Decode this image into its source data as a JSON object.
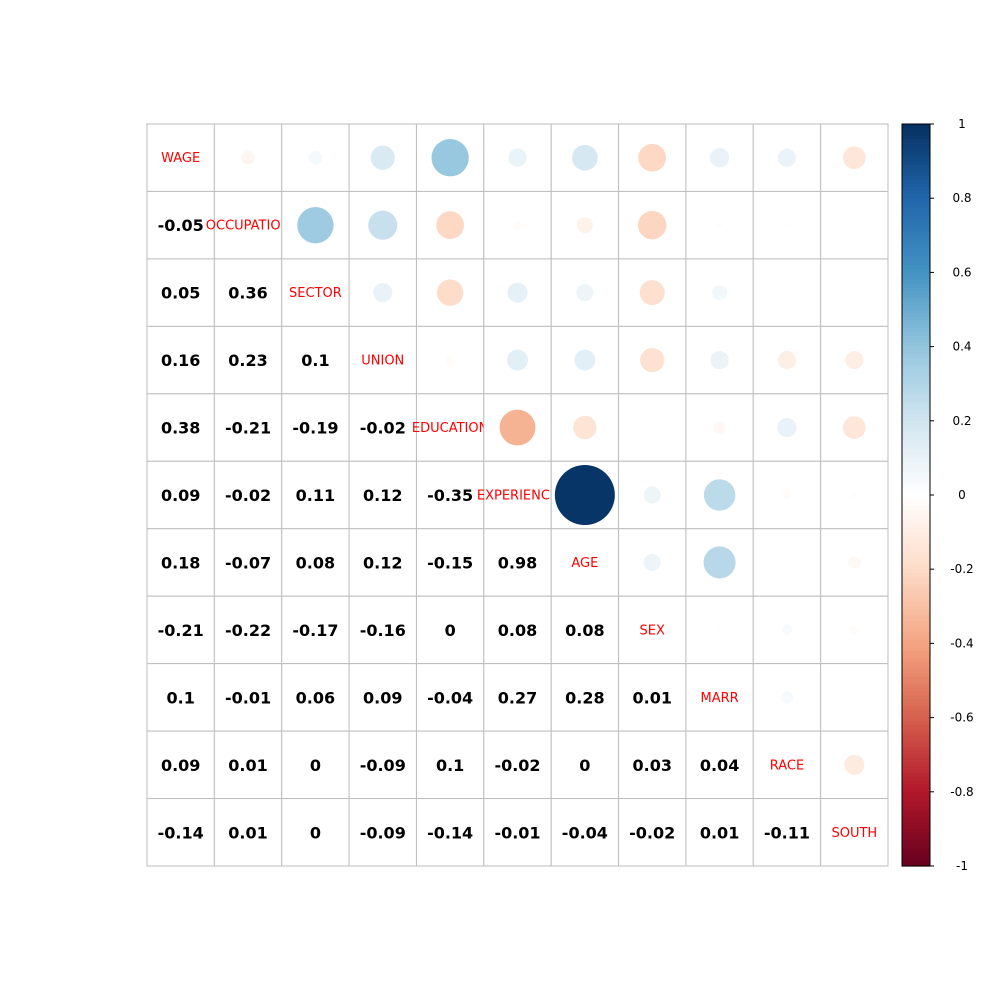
{
  "chart_data": {
    "type": "heatmap",
    "style": "corrplot mixed: upper triangle circles, lower triangle numbers, diagonal variable labels",
    "variables": [
      "WAGE",
      "OCCUPATION",
      "SECTOR",
      "UNION",
      "EDUCATION",
      "EXPERIENCE",
      "AGE",
      "SEX",
      "MARR",
      "RACE",
      "SOUTH"
    ],
    "lower_triangle": [
      [],
      [
        -0.05
      ],
      [
        0.05,
        0.36
      ],
      [
        0.16,
        0.23,
        0.1
      ],
      [
        0.38,
        -0.21,
        -0.19,
        -0.02
      ],
      [
        0.09,
        -0.02,
        0.11,
        0.12,
        -0.35
      ],
      [
        0.18,
        -0.07,
        0.08,
        0.12,
        -0.15,
        0.98
      ],
      [
        -0.21,
        -0.22,
        -0.17,
        -0.16,
        0,
        0.08,
        0.08
      ],
      [
        0.1,
        -0.01,
        0.06,
        0.09,
        -0.04,
        0.27,
        0.28,
        0.01
      ],
      [
        0.09,
        0.01,
        0,
        -0.09,
        0.1,
        -0.02,
        0,
        0.03,
        0.04
      ],
      [
        -0.14,
        0.01,
        0,
        -0.09,
        -0.14,
        -0.01,
        -0.04,
        -0.02,
        0.01,
        -0.11
      ]
    ],
    "colorbar": {
      "range": [
        -1,
        1
      ],
      "ticks": [
        "1",
        "0.8",
        "0.6",
        "0.4",
        "0.2",
        "0",
        "-0.2",
        "-0.4",
        "-0.6",
        "-0.8",
        "-1"
      ]
    },
    "colors": {
      "palette": [
        "#67001F",
        "#B2182B",
        "#D6604D",
        "#F4A582",
        "#FDDBC7",
        "#FFFFFF",
        "#D1E5F0",
        "#92C5DE",
        "#4393C3",
        "#2166AC",
        "#053061"
      ],
      "label": "#FF0000",
      "grid": "#BEBEBE",
      "number": "#000000"
    }
  }
}
